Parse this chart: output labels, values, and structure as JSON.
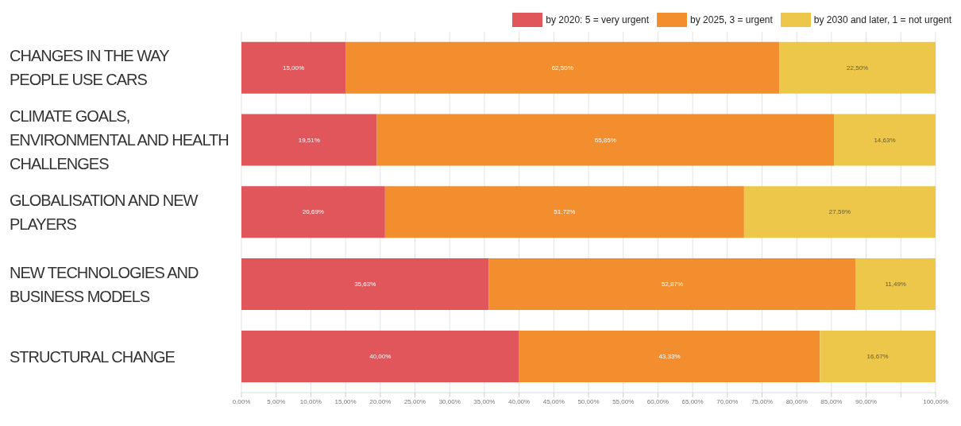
{
  "chart_data": {
    "type": "bar",
    "orientation": "horizontal",
    "stacked": true,
    "categories": [
      "CHANGES IN THE WAY PEOPLE USE CARS",
      "CLIMATE GOALS, ENVIRONMENTAL AND HEALTH CHALLENGES",
      "GLOBALISATION AND NEW PLAYERS",
      "NEW TECHNOLOGIES AND BUSINESS MODELS",
      "STRUCTURAL CHANGE"
    ],
    "series": [
      {
        "name": "by 2020: 5 = very urgent",
        "color": "#e0565b",
        "values": [
          15.0,
          19.51,
          20.69,
          35.63,
          40.0
        ],
        "value_labels": [
          "15,00%",
          "19,51%",
          "20,69%",
          "35,63%",
          "40,00%"
        ]
      },
      {
        "name": "by 2025, 3 = urgent",
        "color": "#f28e2e",
        "values": [
          62.5,
          65.85,
          51.72,
          52.87,
          43.33
        ],
        "value_labels": [
          "62,50%",
          "65,85%",
          "51,72%",
          "52,87%",
          "43,33%"
        ]
      },
      {
        "name": "by 2030 and later, 1 = not urgent",
        "color": "#ecc74a",
        "values": [
          22.5,
          14.63,
          27.59,
          11.49,
          16.67
        ],
        "value_labels": [
          "22,50%",
          "14,63%",
          "27,59%",
          "11,49%",
          "16,67%"
        ]
      }
    ],
    "xlim": [
      0,
      100
    ],
    "xticks": [
      {
        "value": 0,
        "label": "0,00%"
      },
      {
        "value": 5,
        "label": "5,00%"
      },
      {
        "value": 10,
        "label": "10,00%"
      },
      {
        "value": 15,
        "label": "15,00%"
      },
      {
        "value": 20,
        "label": "20,00%"
      },
      {
        "value": 25,
        "label": "25,00%"
      },
      {
        "value": 30,
        "label": "30,00%"
      },
      {
        "value": 35,
        "label": "35,00%"
      },
      {
        "value": 40,
        "label": "40,00%"
      },
      {
        "value": 45,
        "label": "45,00%"
      },
      {
        "value": 50,
        "label": "50,00%"
      },
      {
        "value": 55,
        "label": "55,00%"
      },
      {
        "value": 60,
        "label": "60,00%"
      },
      {
        "value": 65,
        "label": "65,00%"
      },
      {
        "value": 70,
        "label": "70,00%"
      },
      {
        "value": 75,
        "label": "75,00%"
      },
      {
        "value": 80,
        "label": "80,00%"
      },
      {
        "value": 85,
        "label": "85,00%"
      },
      {
        "value": 90,
        "label": "90,00%"
      },
      {
        "value": 95,
        "label": null
      },
      {
        "value": 100,
        "label": "100,00%"
      }
    ],
    "grid": "x",
    "legend": "top right"
  }
}
